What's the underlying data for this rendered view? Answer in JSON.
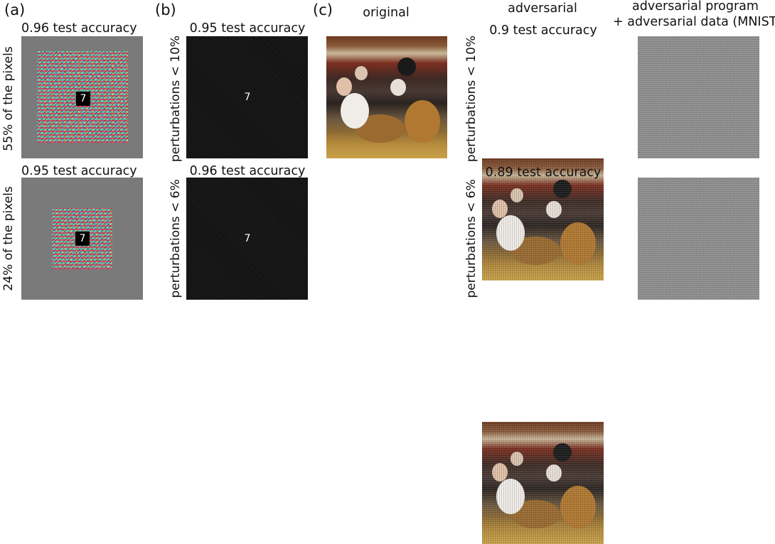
{
  "panel_labels": {
    "a": "(a)",
    "b": "(b)",
    "c": "(c)"
  },
  "panel_a": {
    "top_title": "0.96 test accuracy",
    "bottom_title": "0.95 test accuracy",
    "top_side_label": "55% of the pixels",
    "bottom_side_label": "24% of the pixels",
    "digit": "7"
  },
  "panel_b": {
    "top_title": "0.95 test accuracy",
    "bottom_title": "0.96 test accuracy",
    "top_side_label": "perturbations < 10%",
    "bottom_side_label": "perturbations < 6%",
    "digit": "7"
  },
  "panel_c": {
    "col_original": "original",
    "col_adversarial": "adversarial",
    "col_program_line1": "adversarial program",
    "col_program_line2": "+ adversarial data (MNIST",
    "top_side_label": "perturbations < 10%",
    "bottom_side_label": "perturbations < 6%",
    "adv_top_title": "0.9 test accuracy",
    "adv_bottom_title": "0.89 test accuracy"
  }
}
